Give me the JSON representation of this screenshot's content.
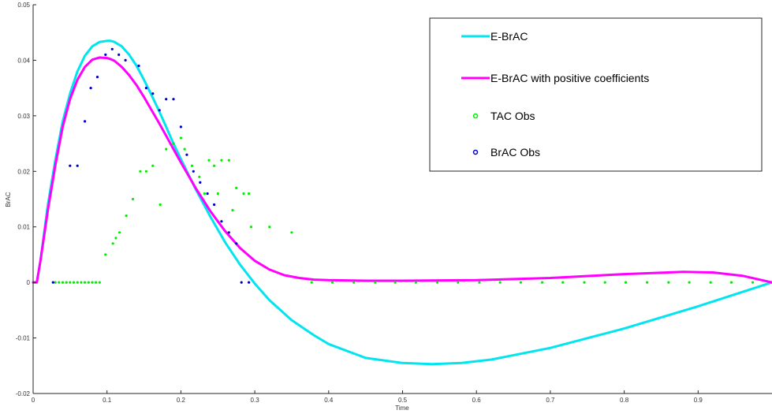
{
  "chart_data": {
    "type": "line",
    "xlabel": "Time",
    "ylabel": "BrAC",
    "xlim": [
      0,
      1
    ],
    "ylim": [
      -0.02,
      0.05
    ],
    "x_ticks": [
      0,
      0.1,
      0.2,
      0.3,
      0.4,
      0.5,
      0.6,
      0.7,
      0.8,
      0.9
    ],
    "x_tick_labels": [
      "0",
      "0.1",
      "0.2",
      "0.3",
      "0.4",
      "0.5",
      "0.6",
      "0.7",
      "0.8",
      "0.9"
    ],
    "y_ticks": [
      -0.02,
      -0.01,
      0,
      0.01,
      0.02,
      0.03,
      0.04,
      0.05
    ],
    "y_tick_labels": [
      "-0.02",
      "-0.01",
      "0",
      "0.01",
      "0.02",
      "0.03",
      "0.04",
      "0.05"
    ],
    "grid": false,
    "legend_position": "top-right",
    "series": [
      {
        "name": "E-BrAC",
        "kind": "line",
        "color": "#00e5ee",
        "x": [
          0,
          0.005,
          0.01,
          0.02,
          0.03,
          0.04,
          0.05,
          0.06,
          0.07,
          0.08,
          0.09,
          0.1,
          0.105,
          0.11,
          0.12,
          0.13,
          0.14,
          0.15,
          0.16,
          0.17,
          0.18,
          0.19,
          0.2,
          0.22,
          0.24,
          0.26,
          0.28,
          0.3,
          0.32,
          0.35,
          0.38,
          0.4,
          0.45,
          0.5,
          0.54,
          0.58,
          0.62,
          0.7,
          0.8,
          0.9,
          1.0
        ],
        "y": [
          0,
          0,
          0.004,
          0.014,
          0.022,
          0.029,
          0.034,
          0.038,
          0.0408,
          0.0425,
          0.0433,
          0.0435,
          0.0435,
          0.0433,
          0.0425,
          0.041,
          0.039,
          0.0365,
          0.0338,
          0.031,
          0.028,
          0.025,
          0.0222,
          0.0168,
          0.0118,
          0.0072,
          0.0032,
          -0.0002,
          -0.0032,
          -0.0068,
          -0.0095,
          -0.0111,
          -0.0136,
          -0.0145,
          -0.0147,
          -0.0145,
          -0.0139,
          -0.0118,
          -0.0083,
          -0.0043,
          0
        ]
      },
      {
        "name": "E-BrAC with positive coefficients",
        "kind": "line",
        "color": "#ff00ff",
        "x": [
          0,
          0.005,
          0.01,
          0.02,
          0.03,
          0.04,
          0.05,
          0.06,
          0.07,
          0.08,
          0.09,
          0.1,
          0.105,
          0.11,
          0.12,
          0.13,
          0.14,
          0.15,
          0.16,
          0.17,
          0.18,
          0.19,
          0.2,
          0.22,
          0.24,
          0.26,
          0.28,
          0.3,
          0.32,
          0.34,
          0.36,
          0.38,
          0.4,
          0.45,
          0.5,
          0.6,
          0.7,
          0.8,
          0.88,
          0.92,
          0.96,
          1.0
        ],
        "y": [
          0,
          0,
          0.004,
          0.013,
          0.021,
          0.028,
          0.033,
          0.0365,
          0.0388,
          0.0401,
          0.0405,
          0.0404,
          0.0402,
          0.0399,
          0.0388,
          0.0373,
          0.0355,
          0.0334,
          0.0311,
          0.0288,
          0.0264,
          0.024,
          0.0216,
          0.017,
          0.0128,
          0.0092,
          0.0062,
          0.0039,
          0.0023,
          0.0013,
          0.0008,
          0.0005,
          0.0004,
          0.0003,
          0.0003,
          0.0004,
          0.0008,
          0.0015,
          0.0019,
          0.0018,
          0.0012,
          0
        ]
      },
      {
        "name": "TAC Obs",
        "kind": "scatter",
        "color": "#00ee00",
        "x": [
          0.03,
          0.035,
          0.04,
          0.045,
          0.05,
          0.055,
          0.06,
          0.065,
          0.07,
          0.075,
          0.08,
          0.085,
          0.09,
          0.098,
          0.108,
          0.112,
          0.117,
          0.126,
          0.135,
          0.145,
          0.153,
          0.162,
          0.172,
          0.18,
          0.19,
          0.2,
          0.205,
          0.215,
          0.225,
          0.232,
          0.238,
          0.245,
          0.25,
          0.255,
          0.265,
          0.27,
          0.275,
          0.285,
          0.292,
          0.295,
          0.32,
          0.35,
          0.377,
          0.405,
          0.434,
          0.463,
          0.49,
          0.518,
          0.547,
          0.575,
          0.604,
          0.632,
          0.66,
          0.689,
          0.717,
          0.746,
          0.774,
          0.802,
          0.831,
          0.86,
          0.888,
          0.917,
          0.945,
          0.974
        ],
        "y": [
          0,
          0,
          0,
          0,
          0,
          0,
          0,
          0,
          0,
          0,
          0,
          0,
          0,
          0.005,
          0.007,
          0.008,
          0.009,
          0.012,
          0.015,
          0.02,
          0.02,
          0.021,
          0.014,
          0.024,
          0.025,
          0.026,
          0.024,
          0.021,
          0.019,
          0.016,
          0.022,
          0.021,
          0.016,
          0.022,
          0.022,
          0.013,
          0.017,
          0.016,
          0.016,
          0.01,
          0.01,
          0.009,
          0,
          0,
          0,
          0,
          0,
          0,
          0,
          0,
          0,
          0,
          0,
          0,
          0,
          0,
          0,
          0,
          0,
          0,
          0,
          0,
          0,
          0
        ]
      },
      {
        "name": "BrAC Obs",
        "kind": "scatter",
        "color": "#0000cc",
        "x": [
          0.027,
          0.05,
          0.06,
          0.07,
          0.078,
          0.087,
          0.098,
          0.107,
          0.116,
          0.125,
          0.143,
          0.153,
          0.162,
          0.171,
          0.18,
          0.19,
          0.2,
          0.208,
          0.217,
          0.226,
          0.236,
          0.245,
          0.255,
          0.265,
          0.275,
          0.282,
          0.292
        ],
        "y": [
          0,
          0.021,
          0.021,
          0.029,
          0.035,
          0.037,
          0.041,
          0.042,
          0.041,
          0.04,
          0.039,
          0.035,
          0.034,
          0.031,
          0.033,
          0.033,
          0.028,
          0.023,
          0.02,
          0.018,
          0.016,
          0.014,
          0.011,
          0.009,
          0.007,
          0,
          0
        ]
      }
    ]
  }
}
